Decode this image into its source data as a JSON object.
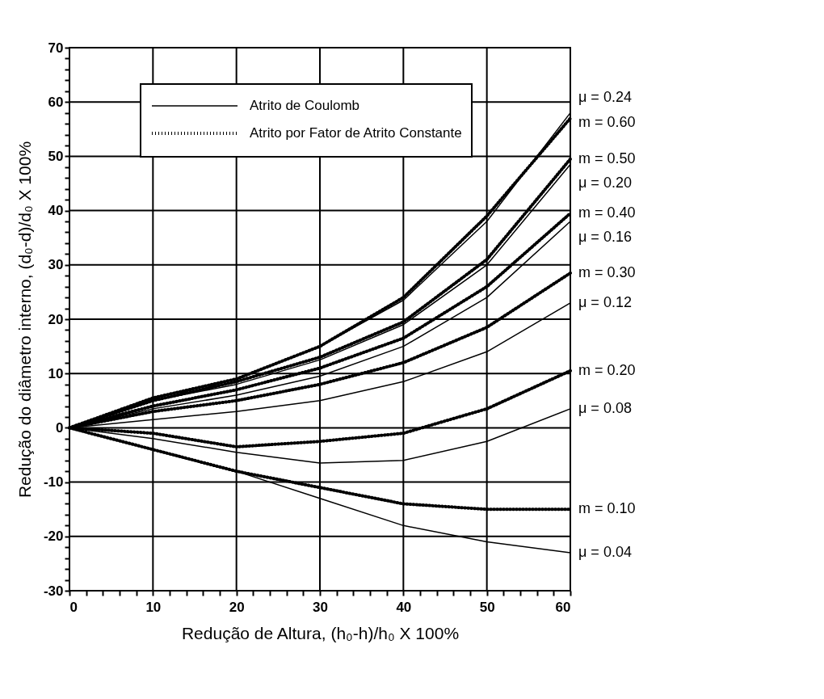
{
  "chart_data": {
    "type": "line",
    "xlabel": "Redução de Altura, (h₀-h)/h₀ X 100%",
    "ylabel": "Redução do diâmetro interno, (d₀-d)/d₀ X 100%",
    "x": [
      0,
      10,
      20,
      30,
      40,
      50,
      60
    ],
    "xlim": [
      0,
      60
    ],
    "ylim": [
      -30,
      70
    ],
    "xticks": [
      0,
      {
        "value": 2,
        "label": null
      },
      {
        "value": 4,
        "label": null
      },
      {
        "value": 6,
        "label": null
      },
      {
        "value": 8,
        "label": null
      },
      10,
      {
        "value": 12,
        "label": null
      },
      {
        "value": 14,
        "label": null
      },
      {
        "value": 16,
        "label": null
      },
      {
        "value": 18,
        "label": null
      },
      20,
      {
        "value": 22,
        "label": null
      },
      {
        "value": 24,
        "label": null
      },
      {
        "value": 26,
        "label": null
      },
      {
        "value": 28,
        "label": null
      },
      30,
      {
        "value": 32,
        "label": null
      },
      {
        "value": 34,
        "label": null
      },
      {
        "value": 36,
        "label": null
      },
      {
        "value": 38,
        "label": null
      },
      40,
      {
        "value": 42,
        "label": null
      },
      {
        "value": 44,
        "label": null
      },
      {
        "value": 46,
        "label": null
      },
      {
        "value": 48,
        "label": null
      },
      50,
      {
        "value": 52,
        "label": null
      },
      {
        "value": 54,
        "label": null
      },
      {
        "value": 56,
        "label": null
      },
      {
        "value": 58,
        "label": null
      },
      60
    ],
    "yticks": [
      -30,
      {
        "value": -28,
        "label": null
      },
      {
        "value": -26,
        "label": null
      },
      {
        "value": -24,
        "label": null
      },
      {
        "value": -22,
        "label": null
      },
      -20,
      {
        "value": -18,
        "label": null
      },
      {
        "value": -16,
        "label": null
      },
      {
        "value": -14,
        "label": null
      },
      {
        "value": -12,
        "label": null
      },
      -10,
      {
        "value": -8,
        "label": null
      },
      {
        "value": -6,
        "label": null
      },
      {
        "value": -4,
        "label": null
      },
      {
        "value": -2,
        "label": null
      },
      0,
      {
        "value": 2,
        "label": null
      },
      {
        "value": 4,
        "label": null
      },
      {
        "value": 6,
        "label": null
      },
      {
        "value": 8,
        "label": null
      },
      10,
      {
        "value": 12,
        "label": null
      },
      {
        "value": 14,
        "label": null
      },
      {
        "value": 16,
        "label": null
      },
      {
        "value": 18,
        "label": null
      },
      20,
      {
        "value": 22,
        "label": null
      },
      {
        "value": 24,
        "label": null
      },
      {
        "value": 26,
        "label": null
      },
      {
        "value": 28,
        "label": null
      },
      30,
      {
        "value": 32,
        "label": null
      },
      {
        "value": 34,
        "label": null
      },
      {
        "value": 36,
        "label": null
      },
      {
        "value": 38,
        "label": null
      },
      40,
      {
        "value": 42,
        "label": null
      },
      {
        "value": 44,
        "label": null
      },
      {
        "value": 46,
        "label": null
      },
      {
        "value": 48,
        "label": null
      },
      50,
      {
        "value": 52,
        "label": null
      },
      {
        "value": 54,
        "label": null
      },
      {
        "value": 56,
        "label": null
      },
      {
        "value": 58,
        "label": null
      },
      60,
      {
        "value": 62,
        "label": null
      },
      {
        "value": 64,
        "label": null
      },
      {
        "value": 66,
        "label": null
      },
      {
        "value": 68,
        "label": null
      },
      70
    ],
    "grid": true,
    "legend": "right",
    "marker": "none",
    "annotations": [
      "Atrito de Coulomb",
      "Atrito por Fator de Atrito Constante"
    ],
    "series": [
      {
        "name": "μ = 0.24",
        "color": "#000000",
        "line_style": "solid",
        "values": [
          0,
          5.5,
          9,
          15,
          23.5,
          38,
          58
        ]
      },
      {
        "name": "m = 0.60",
        "color": "#000000",
        "line_style": "dotted",
        "values": [
          0,
          5.5,
          9,
          15,
          24,
          39,
          57
        ]
      },
      {
        "name": "m = 0.50",
        "color": "#000000",
        "line_style": "dotted",
        "values": [
          0,
          5,
          8.5,
          13,
          19.5,
          31,
          49.5
        ]
      },
      {
        "name": "μ = 0.20",
        "color": "#000000",
        "line_style": "solid",
        "values": [
          0,
          5,
          8,
          12.5,
          19,
          30,
          48.5
        ]
      },
      {
        "name": "m = 0.40",
        "color": "#000000",
        "line_style": "dotted",
        "values": [
          0,
          4,
          7,
          11,
          16.5,
          26,
          39.5
        ]
      },
      {
        "name": "μ = 0.16",
        "color": "#000000",
        "line_style": "solid",
        "values": [
          0,
          3.5,
          6,
          9.5,
          15,
          24,
          38
        ]
      },
      {
        "name": "m = 0.30",
        "color": "#000000",
        "line_style": "dotted",
        "values": [
          0,
          3,
          5,
          8,
          12,
          18.5,
          28.5
        ]
      },
      {
        "name": "μ = 0.12",
        "color": "#000000",
        "line_style": "solid",
        "values": [
          0,
          1.5,
          3,
          5,
          8.5,
          14,
          23
        ]
      },
      {
        "name": "m = 0.20",
        "color": "#000000",
        "line_style": "dotted",
        "values": [
          0,
          -1,
          -3.5,
          -2.5,
          -1,
          3.5,
          10.5
        ]
      },
      {
        "name": "μ = 0.08",
        "color": "#000000",
        "line_style": "solid",
        "values": [
          0,
          -2,
          -4.5,
          -6.5,
          -6,
          -2.5,
          3.5
        ]
      },
      {
        "name": "m = 0.10",
        "color": "#000000",
        "line_style": "dotted",
        "values": [
          0,
          -4,
          -8,
          -11,
          -14,
          -15,
          -15
        ]
      },
      {
        "name": "μ = 0.04",
        "color": "#000000",
        "line_style": "solid",
        "values": [
          0,
          -4,
          -8,
          -13,
          -18,
          -21,
          -23
        ]
      }
    ]
  }
}
